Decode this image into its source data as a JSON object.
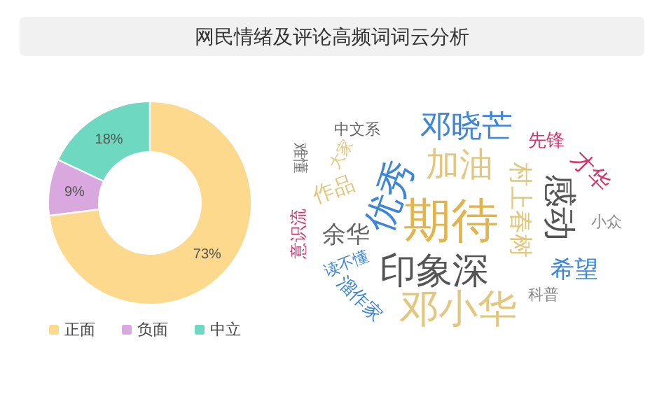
{
  "chart_data": [
    {
      "type": "donut",
      "title": "网民情绪及评论高频词词云分析",
      "categories": [
        "正面",
        "负面",
        "中立"
      ],
      "values": [
        73,
        9,
        18
      ],
      "colors": [
        "#fcd98d",
        "#d9a8df",
        "#6fd8c0"
      ],
      "value_labels": [
        "73%",
        "9%",
        "18%"
      ],
      "legend": "bottom"
    },
    {
      "type": "other",
      "annotations": [
        "邓晓芒",
        "中文系",
        "先锋",
        "才华",
        "难懂",
        "大家",
        "优秀",
        "加油",
        "村上春树",
        "感动",
        "作品",
        "期待",
        "意识流",
        "余华",
        "小众",
        "希望",
        "读不懂",
        "印象深",
        "溜作家",
        "邓小华",
        "科普"
      ]
    }
  ]
}
